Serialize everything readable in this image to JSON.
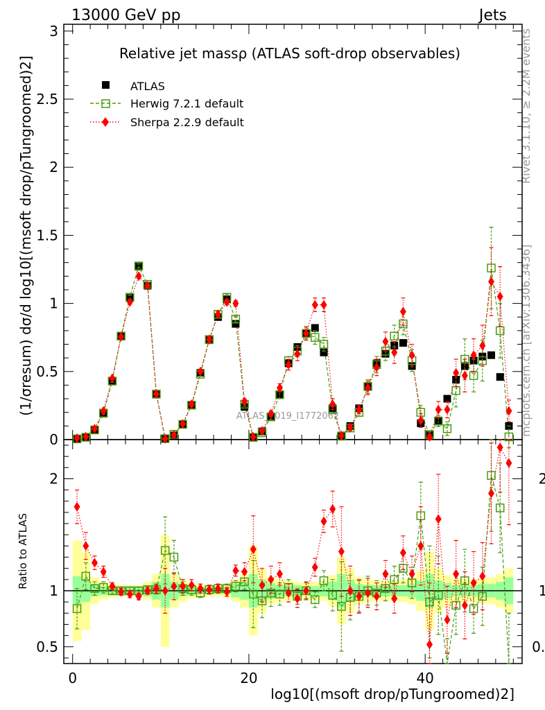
{
  "header": {
    "left": "13000 GeV pp",
    "right": "Jets"
  },
  "title": "Relative jet massρ (ATLAS soft-drop observables)",
  "side_texts": {
    "rivet": "Rivet 3.1.10, ≥ 2.2M events",
    "mcplots": "mcplots.cern.ch [arXiv:1306.3436]"
  },
  "watermark": "ATLAS_2019_I1772062",
  "legend": [
    {
      "name": "ATLAS",
      "color": "#000000",
      "marker": "square"
    },
    {
      "name": "Herwig 7.2.1 default",
      "color": "#4a9a10",
      "marker": "open-square"
    },
    {
      "name": "Sherpa 2.2.9 default",
      "color": "#ff0000",
      "marker": "diamond"
    }
  ],
  "chart_data": {
    "type": "scatter",
    "xlim": [
      -1,
      51
    ],
    "xticks": [
      "0",
      "20",
      "40"
    ],
    "main": {
      "ylabel": "(1/σresum) dσ/d log10[(msoft drop/pTungroomed)2]",
      "ylim": [
        0,
        3.05
      ],
      "yticks": [
        "0",
        "0.5",
        "1",
        "1.5",
        "2",
        "2.5",
        "3"
      ]
    },
    "ratio": {
      "ylabel": "Ratio to ATLAS",
      "ylim": [
        0.35,
        2.35
      ],
      "yticks": [
        "0.5",
        "1",
        "2"
      ]
    },
    "xlabel": "log10[(msoft drop/pTungroomed)2]",
    "x": [
      0.5,
      1.5,
      2.5,
      3.5,
      4.5,
      5.5,
      6.5,
      7.5,
      8.5,
      9.5,
      10.5,
      11.5,
      12.5,
      13.5,
      14.5,
      15.5,
      16.5,
      17.5,
      18.5,
      19.5,
      20.5,
      21.5,
      22.5,
      23.5,
      24.5,
      25.5,
      26.5,
      27.5,
      28.5,
      29.5,
      30.5,
      31.5,
      32.5,
      33.5,
      34.5,
      35.5,
      36.5,
      37.5,
      38.5,
      39.5,
      40.5,
      41.5,
      42.5,
      43.5,
      44.5,
      45.5,
      46.5,
      47.5,
      48.5,
      49.5
    ],
    "series": [
      {
        "name": "ATLAS",
        "values": [
          0.006,
          0.015,
          0.07,
          0.19,
          0.43,
          0.76,
          1.04,
          1.27,
          1.13,
          0.33,
          0.005,
          0.03,
          0.11,
          0.25,
          0.49,
          0.73,
          0.9,
          1.03,
          0.85,
          0.24,
          0.02,
          0.06,
          0.17,
          0.33,
          0.56,
          0.68,
          0.78,
          0.82,
          0.64,
          0.23,
          0.03,
          0.1,
          0.23,
          0.39,
          0.56,
          0.63,
          0.69,
          0.71,
          0.54,
          0.12,
          0.04,
          0.14,
          0.3,
          0.44,
          0.54,
          0.58,
          0.61,
          0.62,
          0.46,
          0.1
        ],
        "ratio": [
          1,
          1,
          1,
          1,
          1,
          1,
          1,
          1,
          1,
          1,
          1,
          1,
          1,
          1,
          1,
          1,
          1,
          1,
          1,
          1,
          1,
          1,
          1,
          1,
          1,
          1,
          1,
          1,
          1,
          1,
          1,
          1,
          1,
          1,
          1,
          1,
          1,
          1,
          1,
          1,
          1,
          1,
          1,
          1,
          1,
          1,
          1,
          1,
          1,
          1
        ],
        "err_ratio_inner": [
          0.13,
          0.1,
          0.05,
          0.04,
          0.03,
          0.03,
          0.03,
          0.03,
          0.05,
          0.08,
          0.15,
          0.08,
          0.05,
          0.04,
          0.03,
          0.03,
          0.03,
          0.03,
          0.06,
          0.08,
          0.15,
          0.1,
          0.07,
          0.05,
          0.05,
          0.05,
          0.04,
          0.04,
          0.05,
          0.08,
          0.15,
          0.1,
          0.06,
          0.05,
          0.05,
          0.05,
          0.05,
          0.05,
          0.06,
          0.09,
          0.15,
          0.09,
          0.07,
          0.05,
          0.05,
          0.05,
          0.06,
          0.06,
          0.08,
          0.12
        ],
        "err_ratio_outer": [
          0.45,
          0.35,
          0.12,
          0.08,
          0.06,
          0.05,
          0.05,
          0.05,
          0.08,
          0.15,
          0.5,
          0.15,
          0.1,
          0.07,
          0.06,
          0.05,
          0.05,
          0.06,
          0.1,
          0.15,
          0.4,
          0.2,
          0.12,
          0.1,
          0.09,
          0.08,
          0.08,
          0.08,
          0.09,
          0.14,
          0.3,
          0.2,
          0.12,
          0.1,
          0.09,
          0.09,
          0.09,
          0.1,
          0.12,
          0.18,
          0.35,
          0.2,
          0.14,
          0.11,
          0.1,
          0.1,
          0.11,
          0.12,
          0.15,
          0.2
        ]
      },
      {
        "name": "Herwig 7.2.1 default",
        "values": [
          0.005,
          0.017,
          0.071,
          0.195,
          0.43,
          0.76,
          1.045,
          1.275,
          1.14,
          0.335,
          0.007,
          0.039,
          0.112,
          0.253,
          0.48,
          0.735,
          0.92,
          1.045,
          0.885,
          0.26,
          0.016,
          0.05,
          0.167,
          0.33,
          0.58,
          0.65,
          0.78,
          0.75,
          0.7,
          0.22,
          0.025,
          0.085,
          0.2,
          0.39,
          0.55,
          0.65,
          0.76,
          0.85,
          0.58,
          0.2,
          0.036,
          0.135,
          0.08,
          0.36,
          0.59,
          0.47,
          0.58,
          1.26,
          0.8,
          0.02
        ],
        "errors": [
          0.002,
          0.003,
          0.005,
          0.008,
          0.01,
          0.01,
          0.015,
          0.015,
          0.015,
          0.01,
          0.003,
          0.006,
          0.008,
          0.01,
          0.015,
          0.015,
          0.02,
          0.02,
          0.02,
          0.015,
          0.005,
          0.01,
          0.02,
          0.03,
          0.03,
          0.04,
          0.04,
          0.05,
          0.05,
          0.03,
          0.01,
          0.02,
          0.03,
          0.05,
          0.06,
          0.07,
          0.08,
          0.08,
          0.08,
          0.05,
          0.02,
          0.04,
          0.05,
          0.12,
          0.15,
          0.12,
          0.15,
          0.3,
          0.2,
          0.08
        ],
        "ratio": [
          0.84,
          1.13,
          1.02,
          1.03,
          1.0,
          1.0,
          1.0,
          1.0,
          1.01,
          1.01,
          1.36,
          1.3,
          1.02,
          1.01,
          0.98,
          1.01,
          1.02,
          1.02,
          1.04,
          1.08,
          0.97,
          0.91,
          0.98,
          0.97,
          1.03,
          0.95,
          1.0,
          0.92,
          1.09,
          0.96,
          0.86,
          0.94,
          0.95,
          1.0,
          0.98,
          1.02,
          1.1,
          1.2,
          1.07,
          1.67,
          0.9,
          0.96,
          0.27,
          0.87,
          1.09,
          0.84,
          0.95,
          2.03,
          1.74,
          0.2
        ],
        "ratio_err": [
          0.18,
          0.12,
          0.06,
          0.05,
          0.03,
          0.03,
          0.03,
          0.03,
          0.03,
          0.04,
          0.3,
          0.15,
          0.06,
          0.05,
          0.04,
          0.04,
          0.04,
          0.04,
          0.05,
          0.07,
          0.3,
          0.15,
          0.12,
          0.1,
          0.07,
          0.07,
          0.07,
          0.07,
          0.09,
          0.14,
          0.4,
          0.2,
          0.14,
          0.13,
          0.11,
          0.11,
          0.12,
          0.13,
          0.14,
          0.3,
          0.5,
          0.35,
          0.3,
          0.26,
          0.28,
          0.22,
          0.26,
          0.5,
          0.4,
          0.6
        ]
      },
      {
        "name": "Sherpa 2.2.9 default",
        "values": [
          0.011,
          0.021,
          0.08,
          0.21,
          0.45,
          0.755,
          1.01,
          1.2,
          1.13,
          0.335,
          0.005,
          0.035,
          0.115,
          0.26,
          0.5,
          0.735,
          0.92,
          1.01,
          1.0,
          0.28,
          0.02,
          0.065,
          0.19,
          0.38,
          0.55,
          0.63,
          0.78,
          0.99,
          0.99,
          0.26,
          0.03,
          0.09,
          0.22,
          0.38,
          0.53,
          0.72,
          0.64,
          0.94,
          0.62,
          0.14,
          0.02,
          0.22,
          0.22,
          0.49,
          0.47,
          0.62,
          0.69,
          1.16,
          1.05,
          0.21
        ],
        "errors": [
          0.002,
          0.003,
          0.006,
          0.008,
          0.01,
          0.012,
          0.015,
          0.015,
          0.015,
          0.01,
          0.003,
          0.005,
          0.008,
          0.012,
          0.015,
          0.015,
          0.02,
          0.02,
          0.02,
          0.02,
          0.005,
          0.01,
          0.02,
          0.03,
          0.04,
          0.05,
          0.05,
          0.05,
          0.05,
          0.04,
          0.01,
          0.02,
          0.03,
          0.05,
          0.06,
          0.07,
          0.08,
          0.1,
          0.08,
          0.05,
          0.02,
          0.06,
          0.06,
          0.1,
          0.12,
          0.12,
          0.15,
          0.25,
          0.22,
          0.08
        ],
        "ratio": [
          1.75,
          1.4,
          1.25,
          1.17,
          1.04,
          0.99,
          0.97,
          0.95,
          1.0,
          1.02,
          1.0,
          1.04,
          1.04,
          1.05,
          1.02,
          1.01,
          1.02,
          0.99,
          1.18,
          1.17,
          1.37,
          1.05,
          1.1,
          1.15,
          0.98,
          0.93,
          1.0,
          1.21,
          1.62,
          1.73,
          1.35,
          1.0,
          0.95,
          0.98,
          0.95,
          1.15,
          0.93,
          1.34,
          1.15,
          1.4,
          0.52,
          1.64,
          0.74,
          1.15,
          0.87,
          1.07,
          1.13,
          1.87,
          2.28,
          2.14
        ],
        "ratio_err": [
          0.15,
          0.12,
          0.06,
          0.05,
          0.03,
          0.03,
          0.03,
          0.03,
          0.03,
          0.04,
          0.2,
          0.12,
          0.06,
          0.05,
          0.04,
          0.04,
          0.04,
          0.04,
          0.05,
          0.08,
          0.3,
          0.15,
          0.12,
          0.1,
          0.08,
          0.08,
          0.08,
          0.08,
          0.1,
          0.16,
          0.4,
          0.22,
          0.15,
          0.13,
          0.12,
          0.12,
          0.13,
          0.15,
          0.16,
          0.35,
          0.55,
          0.4,
          0.3,
          0.3,
          0.3,
          0.28,
          0.3,
          0.45,
          0.4,
          0.55
        ]
      }
    ]
  }
}
